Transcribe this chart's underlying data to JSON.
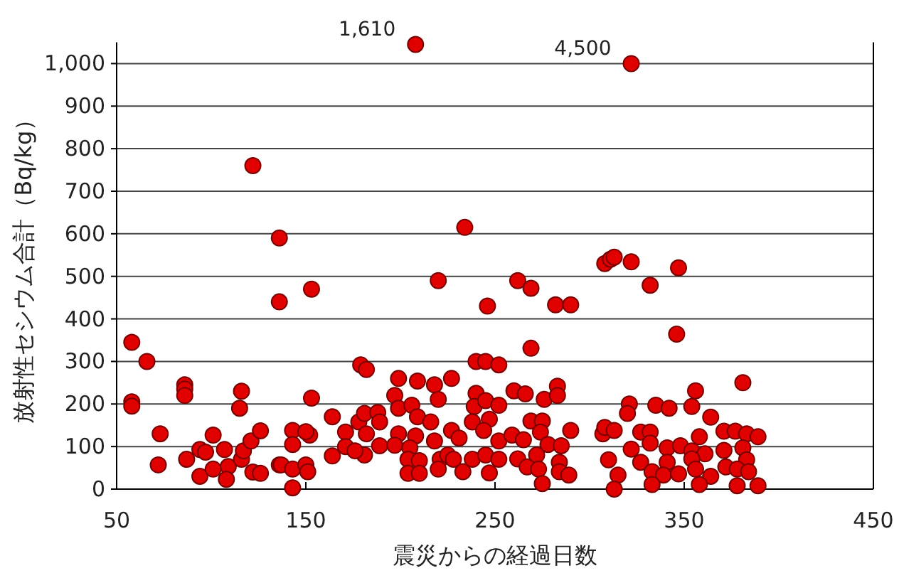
{
  "chart_data": {
    "type": "scatter",
    "xlabel": "震災からの経過日数",
    "ylabel": "放射性セシウム合計（Bq/kg）",
    "color": "#e00000",
    "marker": "circle",
    "grid": "y",
    "xlim": [
      50,
      450
    ],
    "xticks": [
      50,
      150,
      250,
      350,
      450
    ],
    "ylim": [
      0,
      1050
    ],
    "yticks": [
      0,
      100,
      200,
      300,
      400,
      500,
      600,
      700,
      800,
      900,
      {
        "value": 1000,
        "label": "1,000"
      }
    ],
    "annotations": [
      {
        "text": "1,610",
        "x": 208,
        "y": 1045
      },
      {
        "text": "4,500",
        "x": 322,
        "y": 1000
      }
    ],
    "x": [
      208,
      322,
      122,
      136,
      136,
      58,
      66,
      58,
      58,
      86,
      86,
      86,
      116,
      115,
      73,
      72,
      87,
      101,
      94,
      97,
      94,
      101,
      107,
      109,
      108,
      116,
      117,
      121,
      126,
      122,
      126,
      136,
      153,
      220,
      179,
      182,
      153,
      164,
      143,
      152,
      143,
      150,
      137,
      143,
      150,
      151,
      143,
      164,
      171,
      171,
      178,
      181,
      182,
      181,
      188,
      189,
      189,
      176,
      199,
      197,
      209,
      218,
      220,
      199,
      206,
      209,
      199,
      208,
      216,
      197,
      205,
      218,
      204,
      210,
      204,
      210,
      221,
      220,
      234,
      262,
      269,
      246,
      282,
      290,
      269,
      240,
      245,
      252,
      227,
      240,
      239,
      245,
      252,
      260,
      266,
      276,
      283,
      283,
      238,
      247,
      269,
      275,
      290,
      227,
      231,
      244,
      252,
      259,
      265,
      274,
      278,
      285,
      225,
      228,
      238,
      245,
      252,
      262,
      272,
      233,
      247,
      267,
      273,
      284,
      284,
      289,
      275,
      307,
      308,
      311,
      313,
      322,
      347,
      332,
      346,
      381,
      356,
      354,
      321,
      320,
      335,
      342,
      364,
      308,
      313,
      327,
      332,
      358,
      371,
      377,
      383,
      389,
      322,
      332,
      341,
      348,
      354,
      361,
      371,
      381,
      310,
      327,
      341,
      354,
      383,
      315,
      333,
      339,
      347,
      356,
      364,
      372,
      378,
      384,
      313,
      333,
      358,
      378,
      389
    ],
    "values": [
      1045,
      1000,
      760,
      590,
      440,
      345,
      300,
      205,
      195,
      245,
      235,
      220,
      230,
      190,
      130,
      57,
      70,
      127,
      93,
      87,
      30,
      47,
      93,
      53,
      23,
      70,
      90,
      113,
      137,
      40,
      37,
      57,
      470,
      490,
      292,
      281,
      214,
      170,
      138,
      127,
      105,
      135,
      57,
      47,
      57,
      41,
      3,
      78,
      134,
      100,
      158,
      178,
      130,
      80,
      180,
      158,
      102,
      90,
      260,
      220,
      254,
      245,
      211,
      190,
      197,
      170,
      130,
      125,
      158,
      103,
      97,
      113,
      70,
      67,
      37,
      37,
      70,
      47,
      615,
      490,
      472,
      430,
      433,
      433,
      331,
      300,
      300,
      292,
      260,
      225,
      194,
      208,
      197,
      231,
      224,
      211,
      242,
      220,
      158,
      164,
      160,
      160,
      138,
      138,
      120,
      138,
      113,
      127,
      116,
      134,
      105,
      102,
      80,
      70,
      70,
      80,
      70,
      71,
      80,
      41,
      38,
      52,
      47,
      63,
      41,
      33,
      13,
      130,
      530,
      540,
      545,
      534,
      520,
      479,
      364,
      250,
      231,
      194,
      200,
      178,
      197,
      190,
      169,
      145,
      138,
      134,
      134,
      123,
      136,
      136,
      130,
      123,
      94,
      108,
      97,
      102,
      90,
      83,
      91,
      97,
      69,
      63,
      63,
      71,
      69,
      33,
      41,
      33,
      36,
      47,
      30,
      52,
      47,
      41,
      0,
      11,
      11,
      8,
      8
    ]
  }
}
